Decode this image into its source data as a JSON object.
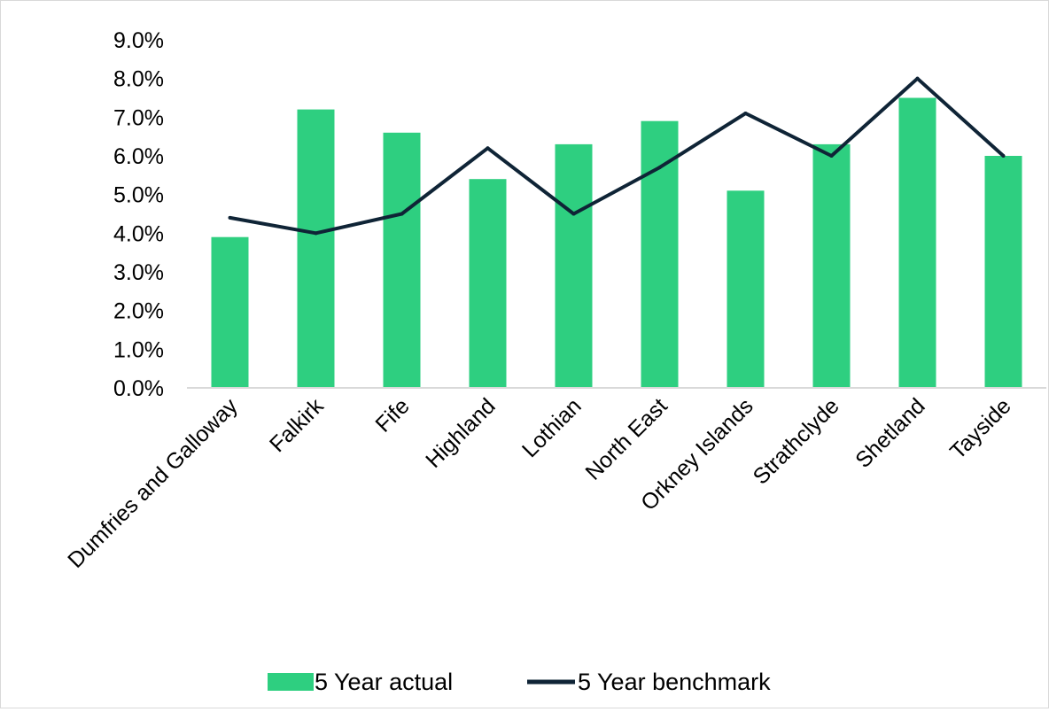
{
  "chart_data": {
    "type": "bar",
    "title": "",
    "xlabel": "",
    "ylabel": "",
    "categories": [
      "Dumfries and Galloway",
      "Falkirk",
      "Fife",
      "Highland",
      "Lothian",
      "North East",
      "Orkney Islands",
      "Strathclyde",
      "Shetland",
      "Tayside"
    ],
    "series": [
      {
        "name": "5 Year actual",
        "type": "bar",
        "color": "#2ecf80",
        "values": [
          0.039,
          0.072,
          0.066,
          0.054,
          0.063,
          0.069,
          0.051,
          0.063,
          0.075,
          0.06
        ]
      },
      {
        "name": "5 Year benchmark",
        "type": "line",
        "color": "#0f2436",
        "values": [
          0.044,
          0.04,
          0.045,
          0.062,
          0.045,
          0.057,
          0.071,
          0.06,
          0.08,
          0.06
        ]
      }
    ],
    "ylim": [
      0,
      0.09
    ],
    "yticks": [
      "0.0%",
      "1.0%",
      "2.0%",
      "3.0%",
      "4.0%",
      "5.0%",
      "6.0%",
      "7.0%",
      "8.0%",
      "9.0%"
    ],
    "grid": false,
    "legend_position": "bottom"
  }
}
